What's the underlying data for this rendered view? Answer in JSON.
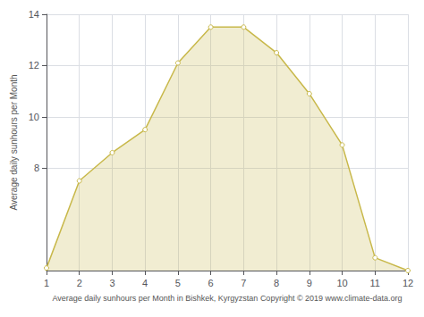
{
  "chart_data": {
    "type": "line",
    "x": [
      1,
      2,
      3,
      4,
      5,
      6,
      7,
      8,
      9,
      10,
      11,
      12
    ],
    "values": [
      4.1,
      7.5,
      8.6,
      9.5,
      12.1,
      13.5,
      13.5,
      12.5,
      10.9,
      8.9,
      4.5,
      4.0
    ],
    "color": "#C8B84A",
    "marker": "circle",
    "xlabel": "Average daily sunhours per Month in Bishkek, Kyrgyzstan Copyright © 2019 www.climate-data.org",
    "ylabel": "Average daily sunhours per Month",
    "xlim": [
      1,
      12
    ],
    "xticks": [
      1,
      2,
      3,
      4,
      5,
      6,
      7,
      8,
      9,
      10,
      11,
      12
    ],
    "ylim": [
      4,
      14
    ],
    "yticks": [
      8,
      10,
      12,
      14
    ],
    "grid": true
  }
}
